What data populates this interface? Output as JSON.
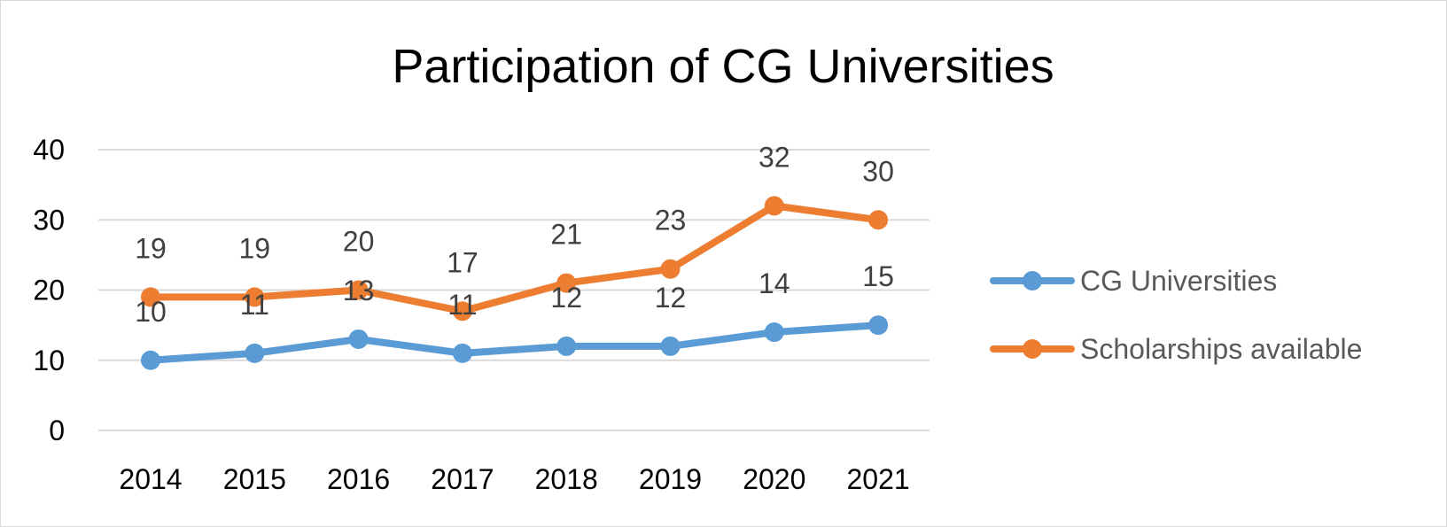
{
  "chart_data": {
    "type": "line",
    "title": "Participation of CG Universities",
    "categories": [
      "2014",
      "2015",
      "2016",
      "2017",
      "2018",
      "2019",
      "2020",
      "2021"
    ],
    "series": [
      {
        "name": "CG Universities",
        "color": "#5B9BD5",
        "values": [
          10,
          11,
          13,
          11,
          12,
          12,
          14,
          15
        ],
        "labels": [
          "10",
          "11",
          "13",
          "11",
          "12",
          "12",
          "14",
          "15"
        ]
      },
      {
        "name": "Scholarships available",
        "color": "#ED7D31",
        "values": [
          19,
          19,
          20,
          17,
          21,
          23,
          32,
          30
        ],
        "labels": [
          "19",
          "19",
          "20",
          "17",
          "21",
          "23",
          "32",
          "30"
        ]
      }
    ],
    "ylim": [
      0,
      40
    ],
    "yticks": [
      "0",
      "10",
      "20",
      "30",
      "40"
    ],
    "xlabel": "",
    "ylabel": "",
    "grid": true,
    "gridline_color": "#d9d9d9",
    "legend_position": "right"
  }
}
